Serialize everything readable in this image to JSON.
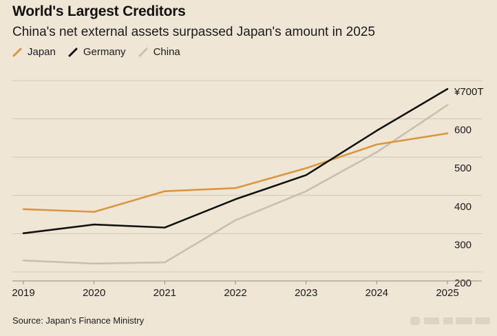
{
  "chart_data": {
    "type": "line",
    "title": "World's Largest Creditors",
    "subtitle": "China's net external assets surpassed Japan's amount in 2025",
    "source": "Source: Japan's Finance Ministry",
    "x": [
      "2019",
      "2020",
      "2021",
      "2022",
      "2023",
      "2024",
      "2025"
    ],
    "series": [
      {
        "name": "Japan",
        "color": "#d9963e",
        "values": [
          364,
          357,
          411,
          419,
          471,
          533,
          562
        ]
      },
      {
        "name": "Germany",
        "color": "#111111",
        "values": [
          301,
          324,
          316,
          390,
          453,
          569,
          678
        ]
      },
      {
        "name": "China",
        "color": "#c8bfb0",
        "values": [
          230,
          222,
          225,
          335,
          411,
          513,
          636
        ]
      }
    ],
    "yticks": [
      200,
      300,
      400,
      500,
      600,
      700
    ],
    "ytick_labels": [
      "200",
      "300",
      "400",
      "500",
      "600",
      "¥700T"
    ],
    "ylim": [
      185,
      700
    ],
    "grid": true,
    "legend_position": "top-left",
    "y_axis_side": "right"
  }
}
